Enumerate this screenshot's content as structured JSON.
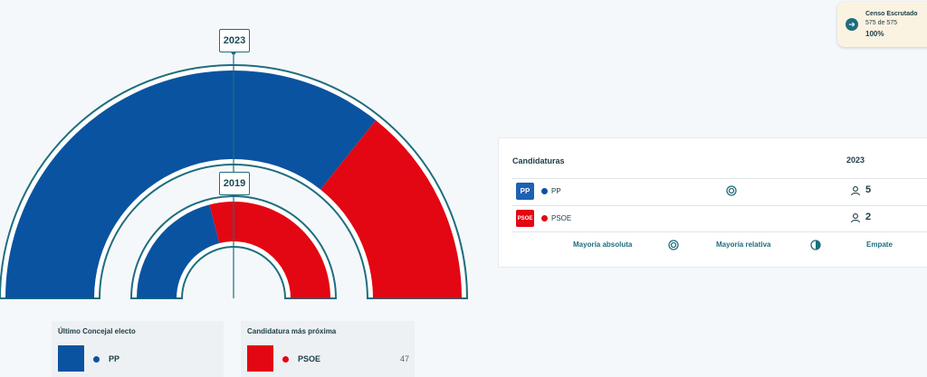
{
  "colors": {
    "pp": "#0a53a0",
    "psoe": "#e30613",
    "accent": "#1e6e7e",
    "background": "#f5f8fb"
  },
  "chart_data": {
    "type": "semicircle",
    "title": "",
    "rings": [
      {
        "year": "2023",
        "series": [
          {
            "name": "PP",
            "seats": 5,
            "color": "#0a53a0"
          },
          {
            "name": "PSOE",
            "seats": 2,
            "color": "#e30613"
          }
        ]
      },
      {
        "year": "2019",
        "series": [
          {
            "name": "PP",
            "fraction": 0.42,
            "color": "#0a53a0"
          },
          {
            "name": "PSOE",
            "fraction": 0.58,
            "color": "#e30613"
          }
        ]
      }
    ]
  },
  "hemicycle": {
    "year_outer": "2023",
    "year_inner": "2019"
  },
  "candidaturas": {
    "title": "Candidaturas",
    "year": "2023",
    "rows": [
      {
        "logo_text": "PP",
        "name": "PP",
        "seats": "5",
        "majority_icon": "absolute-majority-icon",
        "color": "#0a53a0"
      },
      {
        "logo_text": "PSOE",
        "name": "PSOE",
        "seats": "2",
        "color": "#e30613"
      }
    ],
    "legend": {
      "absoluta": "Mayoría absoluta",
      "relativa": "Mayoría relativa",
      "empate": "Empate"
    }
  },
  "ultimo_concejal": {
    "title": "Último Concejal electo",
    "party": "PP",
    "color": "#0a53a0"
  },
  "candidatura_proxima": {
    "title": "Candidatura más próxima",
    "party": "PSOE",
    "votes": "47",
    "color": "#e30613"
  },
  "censo": {
    "title": "Censo Escrutado",
    "count": "575 de 575",
    "percent": "100%"
  }
}
